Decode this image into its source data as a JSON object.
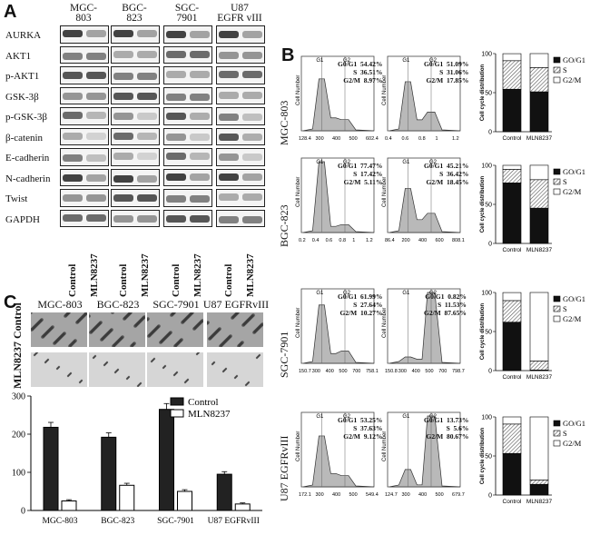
{
  "panels": {
    "a": "A",
    "b": "B",
    "c": "C"
  },
  "wb": {
    "cell_lines": [
      "MGC-\n803",
      "BGC-\n823",
      "SGC-\n7901",
      "U87\nEGFR vIII"
    ],
    "proteins": [
      "AURKA",
      "AKT1",
      "p-AKT1",
      "GSK-3β",
      "p-GSK-3β",
      "β-catenin",
      "E-cadherin",
      "N-cadherin",
      "Twist",
      "GAPDH"
    ],
    "conditions": [
      "Control",
      "MLN8237"
    ]
  },
  "flow": {
    "rows": [
      {
        "cell_line": "MGC-803",
        "control": {
          "g0g1": "54.42%",
          "s": "36.51%",
          "g2m": "8.97%",
          "ticks": [
            "128.4",
            "300",
            "400",
            "500",
            "602.4"
          ]
        },
        "treated": {
          "g0g1": "51.09%",
          "s": "31.06%",
          "g2m": "17.85%",
          "ticks": [
            "0.4",
            "0.6",
            "0.8",
            "1",
            "1.2"
          ]
        }
      },
      {
        "cell_line": "BGC-823",
        "control": {
          "g0g1": "77.47%",
          "s": "17.42%",
          "g2m": "5.11%",
          "ticks": [
            "0.2",
            "0.4",
            "0.6",
            "0.8",
            "1",
            "1.2"
          ]
        },
        "treated": {
          "g0g1": "45.21%",
          "s": "36.42%",
          "g2m": "18.45%",
          "ticks": [
            "86.4",
            "200",
            "400",
            "600",
            "808.1"
          ]
        }
      },
      {
        "cell_line": "SGC-7901",
        "control": {
          "g0g1": "61.99%",
          "s": "27.64%",
          "g2m": "10.27%",
          "ticks": [
            "150.7",
            "300",
            "400",
            "500",
            "700",
            "758.1"
          ]
        },
        "treated": {
          "g0g1": "0.82%",
          "s": "11.53%",
          "g2m": "87.65%",
          "ticks": [
            "150.8",
            "300",
            "400",
            "500",
            "700",
            "798.7"
          ]
        }
      },
      {
        "cell_line": "U87 EGFRvIII",
        "control": {
          "g0g1": "53.25%",
          "s": "37.63%",
          "g2m": "9.12%",
          "ticks": [
            "172.1",
            "300",
            "400",
            "500",
            "549.4"
          ]
        },
        "treated": {
          "g0g1": "13.73%",
          "s": "5.6%",
          "g2m": "80.67%",
          "ticks": [
            "124.7",
            "300",
            "400",
            "500",
            "679.7"
          ]
        }
      }
    ],
    "ylabel": "Cell Number",
    "peak_labels": [
      "G1",
      "G2"
    ],
    "stat_labels": [
      "G0/G1",
      "S",
      "G2/M"
    ]
  },
  "chart_data": [
    {
      "type": "bar",
      "title": "",
      "ylabel": "Cell cycle distribution",
      "categories": [
        "Control",
        "MLN8237"
      ],
      "ylim": [
        0,
        100
      ],
      "yticks": [
        0,
        50,
        100
      ],
      "series": [
        {
          "name": "GO/G1",
          "values": [
            54.42,
            51.09
          ]
        },
        {
          "name": "S",
          "values": [
            36.51,
            31.06
          ]
        },
        {
          "name": "G2/M",
          "values": [
            8.97,
            17.85
          ]
        }
      ]
    },
    {
      "type": "bar",
      "title": "",
      "ylabel": "Cell cycle distribution",
      "categories": [
        "Control",
        "MLN8237"
      ],
      "ylim": [
        0,
        100
      ],
      "yticks": [
        0,
        50,
        100
      ],
      "series": [
        {
          "name": "GO/G1",
          "values": [
            77.47,
            45.21
          ]
        },
        {
          "name": "S",
          "values": [
            17.42,
            36.42
          ]
        },
        {
          "name": "G2/M",
          "values": [
            5.11,
            18.45
          ]
        }
      ]
    },
    {
      "type": "bar",
      "title": "",
      "ylabel": "Cell cycle distribution",
      "categories": [
        "Control",
        "MLN8237"
      ],
      "ylim": [
        0,
        100
      ],
      "yticks": [
        0,
        50,
        100
      ],
      "series": [
        {
          "name": "GO/G1",
          "values": [
            61.99,
            0.82
          ]
        },
        {
          "name": "S",
          "values": [
            27.64,
            11.53
          ]
        },
        {
          "name": "G2/M",
          "values": [
            10.27,
            87.65
          ]
        }
      ]
    },
    {
      "type": "bar",
      "title": "",
      "ylabel": "Cell cycle distribution",
      "categories": [
        "Control",
        "MLN8237"
      ],
      "ylim": [
        0,
        100
      ],
      "yticks": [
        0,
        50,
        100
      ],
      "series": [
        {
          "name": "GO/G1",
          "values": [
            53.25,
            13.73
          ]
        },
        {
          "name": "S",
          "values": [
            37.63,
            5.6
          ]
        },
        {
          "name": "G2/M",
          "values": [
            9.12,
            80.67
          ]
        }
      ]
    },
    {
      "type": "bar",
      "title": "",
      "ylabel": "",
      "categories": [
        "MGC-803",
        "BGC-823",
        "SGC-7901",
        "U87 EGFRvIII"
      ],
      "ylim": [
        0,
        300
      ],
      "yticks": [
        0,
        100,
        200,
        300
      ],
      "series": [
        {
          "name": "Control",
          "values": [
            218,
            192,
            265,
            95
          ]
        },
        {
          "name": "MLN8237",
          "values": [
            25,
            66,
            50,
            17
          ]
        }
      ]
    }
  ],
  "invasion": {
    "cell_lines": [
      "MGC-803",
      "BGC-823",
      "SGC-7901",
      "U87 EGFRvIII"
    ],
    "row_labels": [
      "Control",
      "MLN8237"
    ]
  }
}
